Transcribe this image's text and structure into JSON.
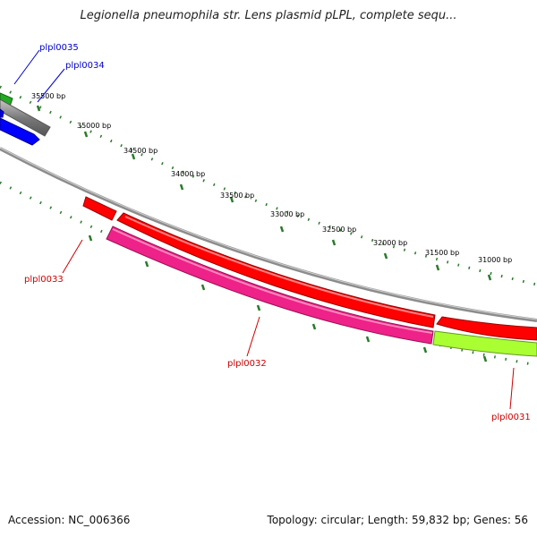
{
  "title": "Legionella pneumophila str. Lens plasmid pLPL, complete sequ...",
  "footer": {
    "accession": "Accession: NC_006366",
    "topology": "Topology: circular; Length: 59,832 bp; Genes: 56"
  },
  "ticks": [
    {
      "label": "35500 bp"
    },
    {
      "label": "35000 bp"
    },
    {
      "label": "34500 bp"
    },
    {
      "label": "34000 bp"
    },
    {
      "label": "33500 bp"
    },
    {
      "label": "33000 bp"
    },
    {
      "label": "32500 bp"
    },
    {
      "label": "32000 bp"
    },
    {
      "label": "31500 bp"
    },
    {
      "label": "31000 bp"
    }
  ],
  "genes": [
    {
      "name": "plpl0035",
      "color": "#0000cc"
    },
    {
      "name": "plpl0034",
      "color": "#0000cc"
    },
    {
      "name": "plpl0033",
      "color": "#cc0000"
    },
    {
      "name": "plpl0032",
      "color": "#cc0000"
    },
    {
      "name": "plpl0031",
      "color": "#cc0000"
    }
  ],
  "colors": {
    "backbone": "#8c8c8c",
    "red_gene": "#ff0000",
    "pink_gene": "#ee2288",
    "green_gene": "#aaff33",
    "dark_green_gene": "#22aa22",
    "gray_gene": "#777777",
    "blue_gene": "#0000ff",
    "tick_dots": "#2a7a2a"
  }
}
